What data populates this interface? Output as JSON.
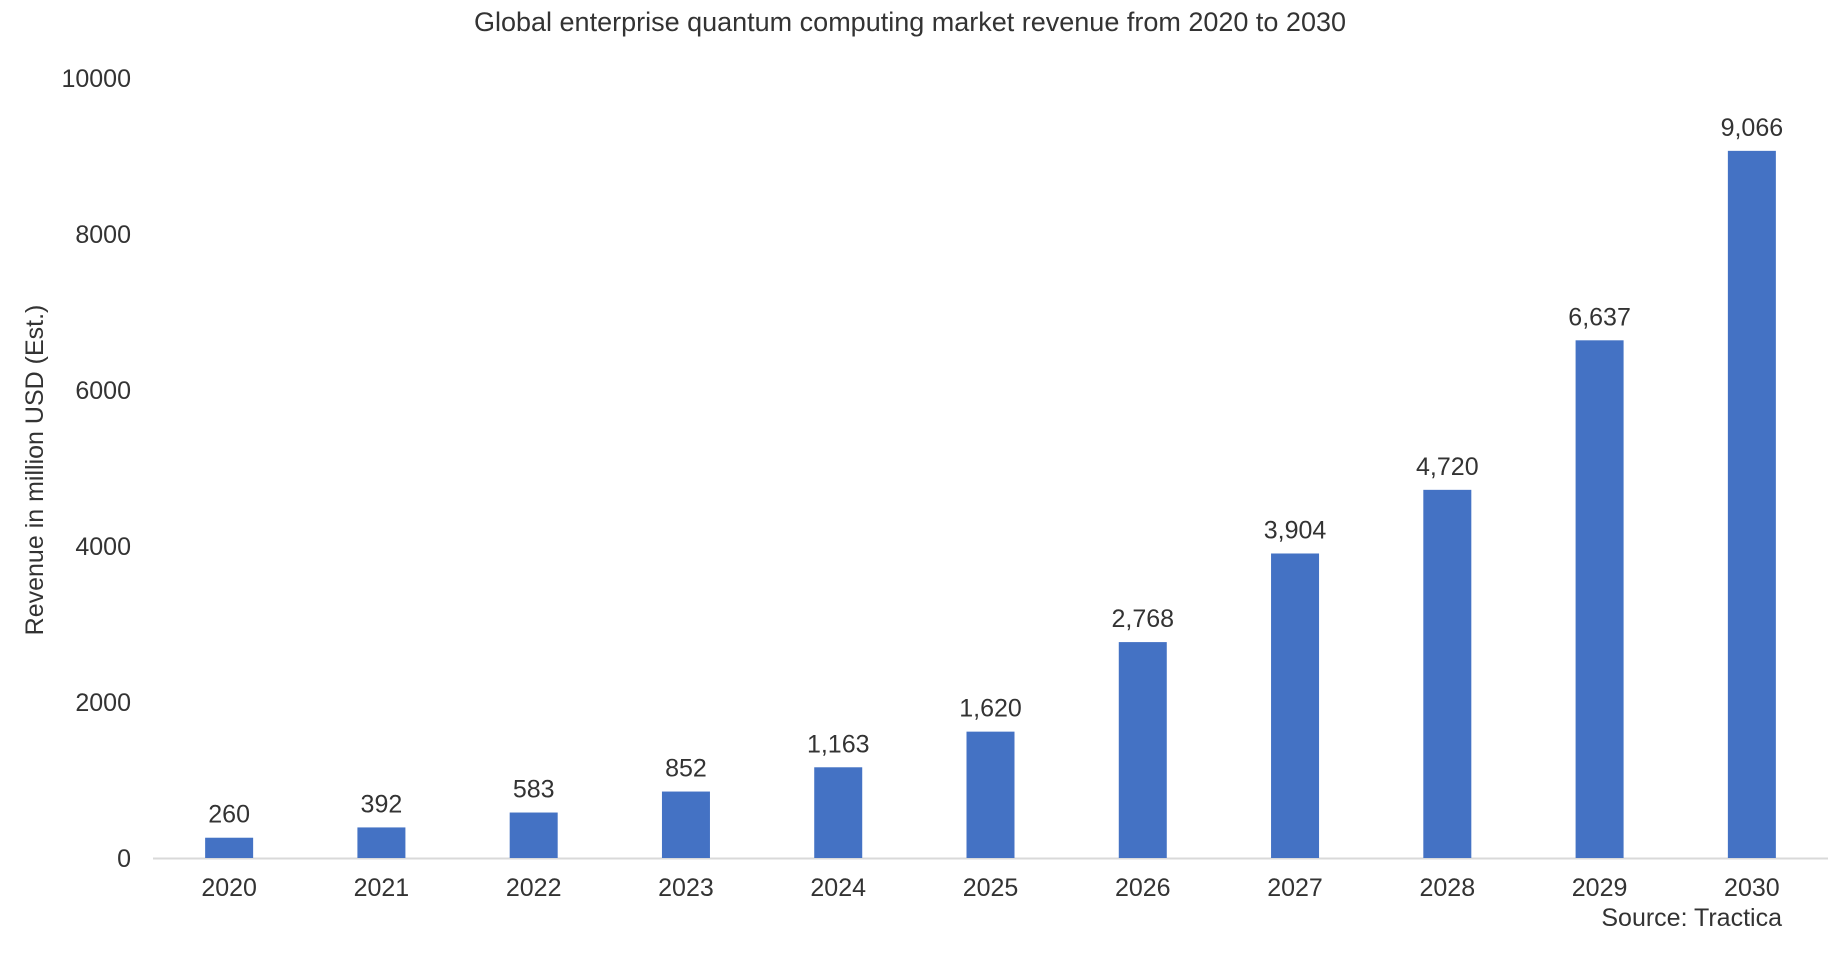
{
  "chart_data": {
    "type": "bar",
    "title": "Global enterprise quantum computing market revenue from 2020 to 2030",
    "xlabel": "",
    "ylabel": "Revenue in million USD (Est.)",
    "categories": [
      "2020",
      "2021",
      "2022",
      "2023",
      "2024",
      "2025",
      "2026",
      "2027",
      "2028",
      "2029",
      "2030"
    ],
    "values": [
      260,
      392,
      583,
      852,
      1163,
      1620,
      2768,
      3904,
      4720,
      6637,
      9066
    ],
    "value_labels": [
      "260",
      "392",
      "583",
      "852",
      "1,163",
      "1,620",
      "2,768",
      "3,904",
      "4,720",
      "6,637",
      "9,066"
    ],
    "ylim": [
      0,
      10000
    ],
    "yticks": [
      0,
      2000,
      4000,
      6000,
      8000,
      10000
    ],
    "ytick_labels": [
      "0",
      "2000",
      "4000",
      "6000",
      "8000",
      "10000"
    ],
    "grid": false,
    "legend": "none",
    "source": "Source: Tractica",
    "bar_color": "#4472C4",
    "axis_color": "#D9D9D9",
    "text_color": "#333333"
  }
}
